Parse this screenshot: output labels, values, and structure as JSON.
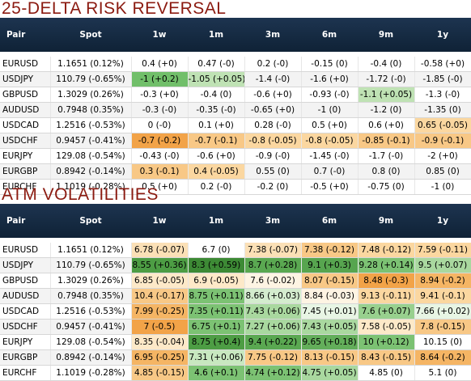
{
  "rr": {
    "title": "25-DELTA RISK REVERSAL",
    "headers": [
      "Pair",
      "Spot",
      "1w",
      "1m",
      "3m",
      "6m",
      "9m",
      "1y"
    ],
    "rows": [
      {
        "pair": "EURUSD",
        "spot": "1.1651 (0.12%)",
        "cells": [
          {
            "text": "0.4 (+0)",
            "color": ""
          },
          {
            "text": "0.47 (-0)",
            "color": ""
          },
          {
            "text": "0.2 (-0)",
            "color": ""
          },
          {
            "text": "-0.15 (0)",
            "color": ""
          },
          {
            "text": "-0.4 (0)",
            "color": ""
          },
          {
            "text": "-0.58 (+0)",
            "color": ""
          }
        ]
      },
      {
        "pair": "USDJPY",
        "spot": "110.79 (-0.65%)",
        "cells": [
          {
            "text": "-1 (+0.2)",
            "color": "#71bf6a"
          },
          {
            "text": "-1.05 (+0.05)",
            "color": "#bfe2b4"
          },
          {
            "text": "-1.4 (-0)",
            "color": ""
          },
          {
            "text": "-1.6 (+0)",
            "color": ""
          },
          {
            "text": "-1.72 (-0)",
            "color": ""
          },
          {
            "text": "-1.85 (-0)",
            "color": ""
          }
        ]
      },
      {
        "pair": "GBPUSD",
        "spot": "1.3029 (0.26%)",
        "cells": [
          {
            "text": "-0.3 (+0)",
            "color": ""
          },
          {
            "text": "-0.4 (0)",
            "color": ""
          },
          {
            "text": "-0.6 (+0)",
            "color": ""
          },
          {
            "text": "-0.93 (-0)",
            "color": ""
          },
          {
            "text": "-1.1 (+0.05)",
            "color": "#bfe2b4"
          },
          {
            "text": "-1.3 (-0)",
            "color": ""
          }
        ]
      },
      {
        "pair": "AUDUSD",
        "spot": "0.7948 (0.35%)",
        "cells": [
          {
            "text": "-0.3 (-0)",
            "color": ""
          },
          {
            "text": "-0.35 (-0)",
            "color": ""
          },
          {
            "text": "-0.65 (+0)",
            "color": ""
          },
          {
            "text": "-1 (0)",
            "color": ""
          },
          {
            "text": "-1.2 (0)",
            "color": ""
          },
          {
            "text": "-1.35 (0)",
            "color": ""
          }
        ]
      },
      {
        "pair": "USDCAD",
        "spot": "1.2516 (-0.53%)",
        "cells": [
          {
            "text": "0 (-0)",
            "color": ""
          },
          {
            "text": "0.1 (+0)",
            "color": ""
          },
          {
            "text": "0.28 (-0)",
            "color": ""
          },
          {
            "text": "0.5 (+0)",
            "color": ""
          },
          {
            "text": "0.6 (+0)",
            "color": ""
          },
          {
            "text": "0.65 (-0.05)",
            "color": "#fbd7a0"
          }
        ]
      },
      {
        "pair": "USDCHF",
        "spot": "0.9457 (-0.41%)",
        "cells": [
          {
            "text": "-0.7 (-0.2)",
            "color": "#f2a348"
          },
          {
            "text": "-0.7 (-0.1)",
            "color": "#f8c886"
          },
          {
            "text": "-0.8 (-0.05)",
            "color": "#fbd7a0"
          },
          {
            "text": "-0.8 (-0.05)",
            "color": "#fbd7a0"
          },
          {
            "text": "-0.85 (-0.1)",
            "color": "#f8c886"
          },
          {
            "text": "-0.9 (-0.1)",
            "color": "#f8c886"
          }
        ]
      },
      {
        "pair": "EURJPY",
        "spot": "129.08 (-0.54%)",
        "cells": [
          {
            "text": "-0.43 (-0)",
            "color": ""
          },
          {
            "text": "-0.6 (+0)",
            "color": ""
          },
          {
            "text": "-0.9 (-0)",
            "color": ""
          },
          {
            "text": "-1.45 (-0)",
            "color": ""
          },
          {
            "text": "-1.7 (-0)",
            "color": ""
          },
          {
            "text": "-2 (+0)",
            "color": ""
          }
        ]
      },
      {
        "pair": "EURGBP",
        "spot": "0.8942 (-0.14%)",
        "cells": [
          {
            "text": "0.3 (-0.1)",
            "color": "#f8c886"
          },
          {
            "text": "0.4 (-0.05)",
            "color": "#fbd7a0"
          },
          {
            "text": "0.55 (0)",
            "color": ""
          },
          {
            "text": "0.7 (-0)",
            "color": ""
          },
          {
            "text": "0.8 (0)",
            "color": ""
          },
          {
            "text": "0.85 (0)",
            "color": ""
          }
        ]
      },
      {
        "pair": "EURCHF",
        "spot": "1.1019 (-0.28%)",
        "cells": [
          {
            "text": "0.5 (+0)",
            "color": ""
          },
          {
            "text": "0.2 (-0)",
            "color": ""
          },
          {
            "text": "-0.2 (0)",
            "color": ""
          },
          {
            "text": "-0.5 (+0)",
            "color": ""
          },
          {
            "text": "-0.75 (0)",
            "color": ""
          },
          {
            "text": "-1 (0)",
            "color": ""
          }
        ]
      }
    ]
  },
  "atm": {
    "title": "ATM VOLATILITIES",
    "headers": [
      "Pair",
      "Spot",
      "1w",
      "1m",
      "3m",
      "6m",
      "9m",
      "1y"
    ],
    "rows": [
      {
        "pair": "EURUSD",
        "spot": "1.1651 (0.12%)",
        "cells": [
          {
            "text": "6.78 (-0.07)",
            "color": "#fbe0b6"
          },
          {
            "text": "6.7 (0)",
            "color": ""
          },
          {
            "text": "7.38 (-0.07)",
            "color": "#fbe0b6"
          },
          {
            "text": "7.38 (-0.12)",
            "color": "#f8c886"
          },
          {
            "text": "7.48 (-0.12)",
            "color": "#fbd7a0"
          },
          {
            "text": "7.59 (-0.11)",
            "color": "#fbd7a0"
          }
        ]
      },
      {
        "pair": "USDJPY",
        "spot": "110.79 (-0.65%)",
        "cells": [
          {
            "text": "8.55 (+0.36)",
            "color": "#4d9d44"
          },
          {
            "text": "8.3 (+0.59)",
            "color": "#3d8a35"
          },
          {
            "text": "8.7 (+0.28)",
            "color": "#5aa851"
          },
          {
            "text": "9.1 (+0.3)",
            "color": "#57a54f"
          },
          {
            "text": "9.28 (+0.14)",
            "color": "#7cc273"
          },
          {
            "text": "9.5 (+0.07)",
            "color": "#a9d89f"
          }
        ]
      },
      {
        "pair": "GBPUSD",
        "spot": "1.3029 (0.26%)",
        "cells": [
          {
            "text": "6.85 (-0.05)",
            "color": "#fde9c8"
          },
          {
            "text": "6.9 (-0.05)",
            "color": "#fde9c8"
          },
          {
            "text": "7.6 (-0.02)",
            "color": "#fef4e3"
          },
          {
            "text": "8.07 (-0.15)",
            "color": "#f8c886"
          },
          {
            "text": "8.48 (-0.3)",
            "color": "#f2a348"
          },
          {
            "text": "8.94 (-0.2)",
            "color": "#f5b564"
          }
        ]
      },
      {
        "pair": "AUDUSD",
        "spot": "0.7948 (0.35%)",
        "cells": [
          {
            "text": "10.4 (-0.17)",
            "color": "#f8c886"
          },
          {
            "text": "8.75 (+0.11)",
            "color": "#7cc273"
          },
          {
            "text": "8.66 (+0.03)",
            "color": "#d4ecce"
          },
          {
            "text": "8.84 (-0.03)",
            "color": "#fef4e3"
          },
          {
            "text": "9.13 (-0.11)",
            "color": "#fbd7a0"
          },
          {
            "text": "9.41 (-0.1)",
            "color": "#fbd7a0"
          }
        ]
      },
      {
        "pair": "USDCAD",
        "spot": "1.2516 (-0.53%)",
        "cells": [
          {
            "text": "7.99 (-0.25)",
            "color": "#f5b564"
          },
          {
            "text": "7.35 (+0.11)",
            "color": "#7cc273"
          },
          {
            "text": "7.43 (+0.06)",
            "color": "#a9d89f"
          },
          {
            "text": "7.45 (+0.01)",
            "color": "#e8f5e4"
          },
          {
            "text": "7.6 (+0.07)",
            "color": "#98d08e"
          },
          {
            "text": "7.66 (+0.02)",
            "color": "#e8f5e4"
          }
        ]
      },
      {
        "pair": "USDCHF",
        "spot": "0.9457 (-0.41%)",
        "cells": [
          {
            "text": "7 (-0.5)",
            "color": "#f2a348"
          },
          {
            "text": "6.75 (+0.1)",
            "color": "#7cc273"
          },
          {
            "text": "7.27 (+0.06)",
            "color": "#a9d89f"
          },
          {
            "text": "7.43 (+0.05)",
            "color": "#a9d89f"
          },
          {
            "text": "7.58 (-0.05)",
            "color": "#fde9c8"
          },
          {
            "text": "7.8 (-0.15)",
            "color": "#f8c886"
          }
        ]
      },
      {
        "pair": "EURJPY",
        "spot": "129.08 (-0.54%)",
        "cells": [
          {
            "text": "8.35 (-0.04)",
            "color": "#fde9c8"
          },
          {
            "text": "8.75 (+0.4)",
            "color": "#4d9d44"
          },
          {
            "text": "9.4 (+0.22)",
            "color": "#5aa851"
          },
          {
            "text": "9.65 (+0.18)",
            "color": "#63ae5a"
          },
          {
            "text": "10 (+0.12)",
            "color": "#7cc273"
          },
          {
            "text": "10.15 (0)",
            "color": ""
          }
        ]
      },
      {
        "pair": "EURGBP",
        "spot": "0.8942 (-0.14%)",
        "cells": [
          {
            "text": "6.95 (-0.25)",
            "color": "#f5b564"
          },
          {
            "text": "7.31 (+0.06)",
            "color": "#c8e8c0"
          },
          {
            "text": "7.75 (-0.12)",
            "color": "#f8c886"
          },
          {
            "text": "8.13 (-0.15)",
            "color": "#f8c886"
          },
          {
            "text": "8.43 (-0.15)",
            "color": "#f8c886"
          },
          {
            "text": "8.64 (-0.2)",
            "color": "#f5b564"
          }
        ]
      },
      {
        "pair": "EURCHF",
        "spot": "1.1019 (-0.28%)",
        "cells": [
          {
            "text": "4.85 (-0.15)",
            "color": "#f8c886"
          },
          {
            "text": "4.6 (+0.1)",
            "color": "#7cc273"
          },
          {
            "text": "4.74 (+0.12)",
            "color": "#7cc273"
          },
          {
            "text": "4.75 (+0.05)",
            "color": "#a9d89f"
          },
          {
            "text": "4.85 (0)",
            "color": ""
          },
          {
            "text": "5.1 (0)",
            "color": ""
          }
        ]
      }
    ]
  }
}
